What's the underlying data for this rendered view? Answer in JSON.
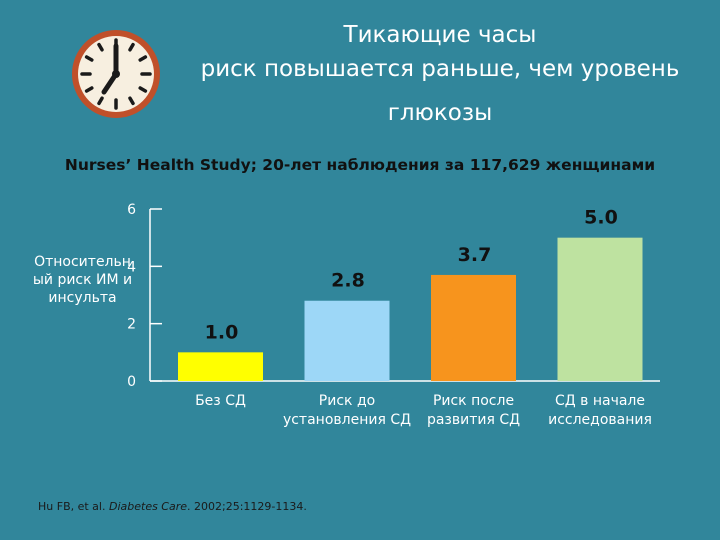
{
  "title_lines": [
    "Тикающие часы",
    "риск повышается раньше, чем уровень",
    "глюкозы"
  ],
  "subtitle": "Nurses’ Health Study; 20-лет наблюдения за 117,629 женщинами",
  "citation_pre": "Hu FB, et al. ",
  "citation_journal": "Diabetes Care",
  "citation_post": ". 2002;25:1129-1134.",
  "icon": "clock-icon",
  "colors": {
    "background": "#31869B",
    "bars": [
      "#FFFF00",
      "#9DD7F7",
      "#F7941D",
      "#BEE2A0"
    ],
    "axis_text": "#ffffff",
    "value_text": "#111111"
  },
  "chart_data": {
    "type": "bar",
    "ylabel": "Относительный риск ИМ и инсульта",
    "ylabel_lines": [
      "Относительн",
      "ый риск ИМ и",
      "инсульта"
    ],
    "ylim": [
      0,
      6
    ],
    "yticks": [
      "6",
      "4",
      "2",
      "0"
    ],
    "grid": false,
    "categories": [
      [
        "Без СД"
      ],
      [
        "Риск до",
        "установления СД"
      ],
      [
        "Риск после",
        "развития СД"
      ],
      [
        "СД в начале",
        "исследования"
      ]
    ],
    "values": [
      1.0,
      2.8,
      3.7,
      5.0
    ],
    "value_labels": [
      "1.0",
      "2.8",
      "3.7",
      "5.0"
    ]
  }
}
